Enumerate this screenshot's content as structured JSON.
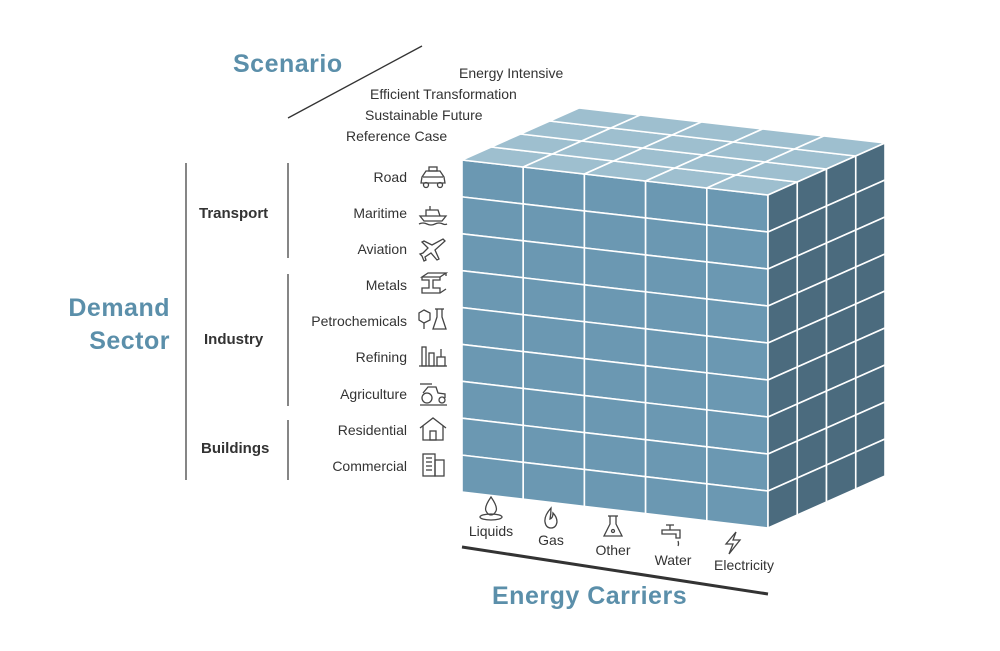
{
  "titles": {
    "scenario": "Scenario",
    "demand_sector": [
      "Demand",
      "Sector"
    ],
    "energy_carriers": "Energy Carriers"
  },
  "scenarios": [
    "Energy Intensive",
    "Efficient Transformation",
    "Sustainable Future",
    "Reference Case"
  ],
  "groups": [
    {
      "label": "Transport",
      "sectors": [
        {
          "label": "Road",
          "icon": "car-icon"
        },
        {
          "label": "Maritime",
          "icon": "ship-icon"
        },
        {
          "label": "Aviation",
          "icon": "airplane-icon"
        }
      ]
    },
    {
      "label": "Industry",
      "sectors": [
        {
          "label": "Metals",
          "icon": "steel-beam-icon"
        },
        {
          "label": "Petrochemicals",
          "icon": "molecule-flask-icon"
        },
        {
          "label": "Refining",
          "icon": "refinery-icon"
        },
        {
          "label": "Agriculture",
          "icon": "tractor-icon"
        }
      ]
    },
    {
      "label": "Buildings",
      "sectors": [
        {
          "label": "Residential",
          "icon": "house-icon"
        },
        {
          "label": "Commercial",
          "icon": "office-building-icon"
        }
      ]
    }
  ],
  "carriers": [
    {
      "label": "Liquids",
      "icon": "oil-drop-icon"
    },
    {
      "label": "Gas",
      "icon": "flame-icon"
    },
    {
      "label": "Other",
      "icon": "flask-icon"
    },
    {
      "label": "Water",
      "icon": "faucet-icon"
    },
    {
      "label": "Electricity",
      "icon": "lightning-icon"
    }
  ],
  "colors": {
    "title_blue": "#5b8faa",
    "cube_front": "#6b98b2",
    "cube_top": "#9ebfcf",
    "cube_side": "#4b6b7e",
    "grid_line": "#ffffff"
  }
}
